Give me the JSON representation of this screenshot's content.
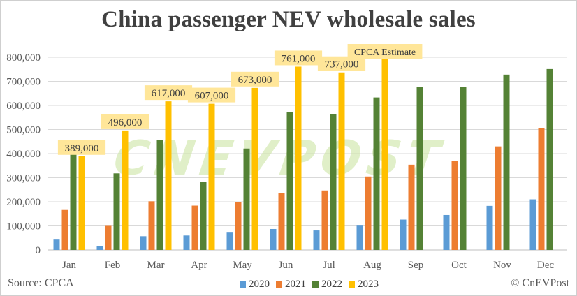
{
  "chart_data": {
    "type": "bar",
    "title": "China passenger NEV wholesale sales",
    "categories": [
      "Jan",
      "Feb",
      "Mar",
      "Apr",
      "May",
      "Jun",
      "Jul",
      "Aug",
      "Sep",
      "Oct",
      "Nov",
      "Dec"
    ],
    "series": [
      {
        "name": "2020",
        "color": "#5b9bd5",
        "values": [
          43000,
          16000,
          57000,
          60000,
          72000,
          87000,
          81000,
          101000,
          126000,
          145000,
          183000,
          210000
        ]
      },
      {
        "name": "2021",
        "color": "#ed7d31",
        "values": [
          166000,
          100000,
          202000,
          184000,
          198000,
          235000,
          247000,
          305000,
          354000,
          369000,
          430000,
          506000
        ]
      },
      {
        "name": "2022",
        "color": "#548235",
        "values": [
          410000,
          318000,
          457000,
          282000,
          421000,
          571000,
          564000,
          633000,
          676000,
          676000,
          728000,
          751000
        ]
      },
      {
        "name": "2023",
        "color": "#ffc000",
        "values": [
          389000,
          496000,
          617000,
          607000,
          673000,
          761000,
          737000,
          800000,
          null,
          null,
          null,
          null
        ]
      }
    ],
    "data_labels": [
      {
        "category": "Jan",
        "text": "389,000"
      },
      {
        "category": "Feb",
        "text": "496,000"
      },
      {
        "category": "Mar",
        "text": "617,000"
      },
      {
        "category": "Apr",
        "text": "607,000"
      },
      {
        "category": "May",
        "text": "673,000"
      },
      {
        "category": "Jun",
        "text": "761,000"
      },
      {
        "category": "Jul",
        "text": "737,000"
      },
      {
        "category": "Aug",
        "text": "CPCA Estimate"
      }
    ],
    "yticks": [
      "0",
      "100,000",
      "200,000",
      "300,000",
      "400,000",
      "500,000",
      "600,000",
      "700,000",
      "800,000"
    ],
    "ylim": [
      0,
      800000
    ],
    "grid": true,
    "legend_position": "bottom"
  },
  "watermark": "CnEVPost",
  "footer": {
    "source": "Source: CPCA",
    "copyright": "© CnEVPost"
  }
}
